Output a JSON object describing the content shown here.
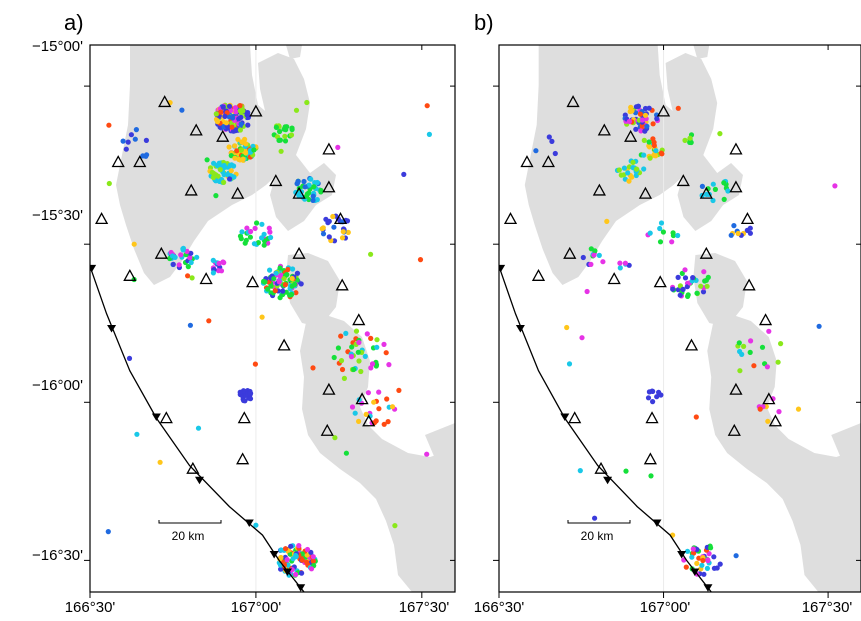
{
  "panels": [
    {
      "id": "a",
      "label": "a)"
    },
    {
      "id": "b",
      "label": "b)"
    }
  ],
  "lat_ticks": [
    "−15°00'",
    "−15°30'",
    "−16°00'",
    "−16°30'"
  ],
  "lon_ticks": [
    "166°30'",
    "167°00'",
    "167°30'"
  ],
  "scale_bar": {
    "label": "20 km"
  },
  "colors": {
    "land": "#dedede",
    "trench": "#000000",
    "station": "#000000",
    "quake_palette": [
      "#3b3bdc",
      "#1f6ae0",
      "#19c8e8",
      "#15e03a",
      "#8ae81a",
      "#ffc61a",
      "#ff4a12",
      "#e633e6"
    ]
  },
  "icons": {
    "station": "open-triangle-icon",
    "trench": "filled-triangle-barb-icon",
    "event": "filled-circle-icon"
  },
  "map_extent": {
    "lon_min": 166.5,
    "lon_max": 167.6,
    "lat_min": -16.6,
    "lat_max": -14.87
  },
  "stations": [
    [
      166.535,
      -15.42
    ],
    [
      166.585,
      -15.24
    ],
    [
      166.725,
      -15.05
    ],
    [
      166.82,
      -15.14
    ],
    [
      166.9,
      -15.16
    ],
    [
      167.0,
      -15.08
    ],
    [
      166.65,
      -15.24
    ],
    [
      166.62,
      -15.6
    ],
    [
      166.715,
      -15.53
    ],
    [
      166.805,
      -15.33
    ],
    [
      166.945,
      -15.34
    ],
    [
      167.06,
      -15.3
    ],
    [
      167.13,
      -15.34
    ],
    [
      167.22,
      -15.2
    ],
    [
      167.22,
      -15.32
    ],
    [
      167.255,
      -15.42
    ],
    [
      167.13,
      -15.53
    ],
    [
      167.26,
      -15.63
    ],
    [
      166.85,
      -15.61
    ],
    [
      166.99,
      -15.62
    ],
    [
      167.085,
      -15.82
    ],
    [
      167.31,
      -15.74
    ],
    [
      167.22,
      -15.96
    ],
    [
      167.32,
      -15.99
    ],
    [
      167.215,
      -16.09
    ],
    [
      166.73,
      -16.05
    ],
    [
      166.965,
      -16.05
    ],
    [
      166.81,
      -16.21
    ],
    [
      166.96,
      -16.18
    ],
    [
      167.34,
      -16.06
    ]
  ],
  "trench_line": [
    [
      166.5,
      -15.57
    ],
    [
      166.55,
      -15.72
    ],
    [
      166.62,
      -15.9
    ],
    [
      166.7,
      -16.05
    ],
    [
      166.8,
      -16.2
    ],
    [
      166.92,
      -16.33
    ],
    [
      167.02,
      -16.42
    ],
    [
      167.07,
      -16.5
    ],
    [
      167.13,
      -16.58
    ],
    [
      167.16,
      -16.62
    ]
  ],
  "trench_barbs": [
    [
      166.505,
      -15.575
    ],
    [
      166.565,
      -15.765
    ],
    [
      166.7,
      -16.045
    ],
    [
      166.83,
      -16.245
    ],
    [
      166.98,
      -16.38
    ],
    [
      167.055,
      -16.48
    ],
    [
      167.095,
      -16.535
    ],
    [
      167.135,
      -16.585
    ]
  ],
  "quake_clusters": [
    {
      "lon": 166.93,
      "lat": -15.1,
      "r": 0.045,
      "n": 130,
      "mix": [
        0,
        0,
        0,
        1,
        4,
        5,
        6,
        7
      ]
    },
    {
      "lon": 166.96,
      "lat": -15.2,
      "r": 0.035,
      "n": 60,
      "mix": [
        3,
        4,
        5,
        5,
        2,
        6
      ]
    },
    {
      "lon": 166.9,
      "lat": -15.27,
      "r": 0.035,
      "n": 60,
      "mix": [
        2,
        2,
        2,
        4,
        5
      ]
    },
    {
      "lon": 167.08,
      "lat": -15.62,
      "r": 0.05,
      "n": 90,
      "mix": [
        3,
        3,
        6,
        7,
        0,
        4,
        2
      ]
    },
    {
      "lon": 167.12,
      "lat": -16.5,
      "r": 0.05,
      "n": 100,
      "mix": [
        0,
        2,
        3,
        5,
        6,
        7
      ]
    },
    {
      "lon": 166.97,
      "lat": -15.98,
      "r": 0.02,
      "n": 22,
      "mix": [
        0
      ]
    },
    {
      "lon": 166.78,
      "lat": -15.54,
      "r": 0.035,
      "n": 30,
      "mix": [
        2,
        3,
        7,
        0
      ]
    },
    {
      "lon": 167.16,
      "lat": -15.33,
      "r": 0.04,
      "n": 40,
      "mix": [
        1,
        2,
        3
      ]
    },
    {
      "lon": 167.24,
      "lat": -15.45,
      "r": 0.04,
      "n": 25,
      "mix": [
        1,
        0,
        5
      ]
    },
    {
      "lon": 167.3,
      "lat": -15.85,
      "r": 0.08,
      "n": 40,
      "mix": [
        3,
        4,
        2,
        6,
        7
      ]
    },
    {
      "lon": 166.88,
      "lat": -15.57,
      "r": 0.025,
      "n": 14,
      "mix": [
        7,
        0,
        2
      ]
    },
    {
      "lon": 167.08,
      "lat": -15.15,
      "r": 0.03,
      "n": 18,
      "mix": [
        3,
        4
      ]
    },
    {
      "lon": 167.0,
      "lat": -15.47,
      "r": 0.04,
      "n": 26,
      "mix": [
        2,
        7,
        3
      ]
    },
    {
      "lon": 167.35,
      "lat": -16.02,
      "r": 0.06,
      "n": 22,
      "mix": [
        2,
        6,
        7,
        5
      ]
    },
    {
      "lon": 166.65,
      "lat": -15.18,
      "r": 0.05,
      "n": 10,
      "mix": [
        1,
        0
      ]
    }
  ]
}
